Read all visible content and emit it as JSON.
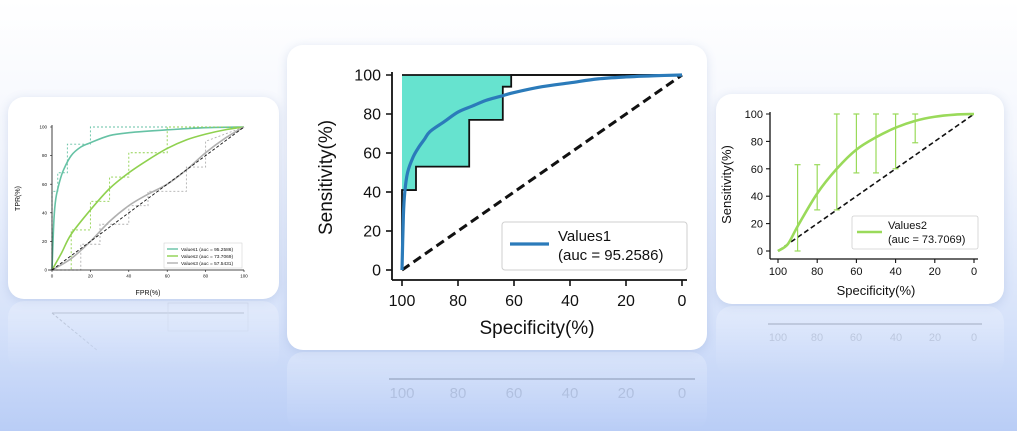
{
  "chart_data": [
    {
      "type": "line",
      "xlabel": "FPR(%)",
      "ylabel": "TPR(%)",
      "xlim": [
        0,
        100
      ],
      "ylim": [
        0,
        100
      ],
      "x_ticks": [
        "0",
        "20",
        "40",
        "60",
        "80",
        "100"
      ],
      "y_ticks": [
        "0",
        "20",
        "40",
        "60",
        "80",
        "100"
      ],
      "legend_placement": "lower-right",
      "diagonal": true,
      "series": [
        {
          "name": "Values1 (auc = 95.2586)",
          "color": "#66c2a5",
          "x": [
            0,
            1,
            2,
            4,
            6,
            10,
            15,
            20,
            30,
            40,
            60,
            80,
            100
          ],
          "y": [
            0,
            35,
            50,
            62,
            70,
            80,
            86,
            89,
            94,
            96,
            98,
            99.5,
            100
          ],
          "step_x": [
            0,
            0,
            3,
            3,
            8,
            8,
            20,
            20,
            30,
            30,
            100
          ],
          "step_y": [
            0,
            55,
            55,
            68,
            68,
            88,
            88,
            100,
            100,
            100,
            100
          ]
        },
        {
          "name": "Values2 (auc = 73.7069)",
          "color": "#8fd14f",
          "x": [
            0,
            5,
            10,
            20,
            30,
            40,
            50,
            60,
            70,
            80,
            90,
            100
          ],
          "y": [
            0,
            12,
            25,
            42,
            57,
            68,
            77,
            85,
            91,
            95,
            98,
            100
          ],
          "step_x": [
            0,
            10,
            10,
            20,
            20,
            30,
            30,
            40,
            40,
            60,
            60,
            100
          ],
          "step_y": [
            0,
            0,
            28,
            28,
            48,
            48,
            65,
            65,
            82,
            82,
            100,
            100
          ]
        },
        {
          "name": "Values3 (auc = 57.5431)",
          "color": "#b0b0b0",
          "x": [
            0,
            10,
            20,
            30,
            40,
            50,
            60,
            70,
            80,
            90,
            100
          ],
          "y": [
            0,
            8,
            20,
            34,
            45,
            53,
            60,
            70,
            82,
            92,
            100
          ],
          "step_x": [
            0,
            15,
            15,
            25,
            25,
            40,
            40,
            50,
            50,
            70,
            70,
            80,
            80,
            100
          ],
          "step_y": [
            0,
            0,
            18,
            18,
            32,
            32,
            45,
            45,
            55,
            55,
            72,
            72,
            90,
            100
          ]
        }
      ]
    },
    {
      "type": "line",
      "xlabel": "Specificity(%)",
      "ylabel": "Sensitivity(%)",
      "xlim": [
        100,
        0
      ],
      "ylim": [
        0,
        100
      ],
      "x_ticks": [
        "100",
        "80",
        "60",
        "40",
        "20",
        "0"
      ],
      "y_ticks": [
        "0",
        "20",
        "40",
        "60",
        "80",
        "100"
      ],
      "legend_placement": "lower-right",
      "diagonal": true,
      "series": [
        {
          "name": "Values1",
          "auc_label": "(auc = 95.2586)",
          "color": "#2b7bba",
          "band_color": "#66e3cf",
          "x": [
            100,
            99.5,
            99,
            98,
            96,
            94,
            92,
            90,
            85,
            80,
            75,
            70,
            65,
            60,
            50,
            40,
            30,
            20,
            10,
            0
          ],
          "y": [
            0,
            28,
            40,
            50,
            58,
            63,
            67,
            71,
            76,
            81,
            84,
            87,
            89,
            91,
            94,
            96,
            98,
            99,
            99.6,
            100
          ],
          "band_upper_x": [
            100,
            60,
            0
          ],
          "band_upper_y": [
            100,
            100,
            100
          ],
          "band_lower_x": [
            100,
            100,
            95,
            95,
            93,
            93,
            76,
            76,
            64,
            64,
            61,
            61,
            0
          ],
          "band_lower_y": [
            0,
            41,
            41,
            53,
            53,
            53,
            53,
            77,
            77,
            94,
            94,
            100,
            100
          ]
        }
      ]
    },
    {
      "type": "line",
      "xlabel": "Specificity(%)",
      "ylabel": "Sensitivity(%)",
      "xlim": [
        100,
        0
      ],
      "ylim": [
        0,
        100
      ],
      "x_ticks": [
        "100",
        "80",
        "60",
        "40",
        "20",
        "0"
      ],
      "y_ticks": [
        "0",
        "20",
        "40",
        "60",
        "80",
        "100"
      ],
      "legend_placement": "lower-right",
      "diagonal": true,
      "series": [
        {
          "name": "Values2",
          "auc_label": "(auc = 73.7069)",
          "color": "#9ada5a",
          "x": [
            100,
            95,
            90,
            80,
            70,
            60,
            50,
            40,
            30,
            20,
            10,
            0
          ],
          "y": [
            0,
            5,
            18,
            42,
            60,
            74,
            83,
            90,
            95,
            98,
            99.5,
            100
          ],
          "err_x": [
            90,
            80,
            70,
            60,
            50,
            40,
            30
          ],
          "err_center": [
            18,
            42,
            62,
            74,
            83,
            90,
            95
          ],
          "err_low": [
            0,
            30,
            30,
            57,
            57,
            60,
            79
          ],
          "err_high": [
            63,
            63,
            100,
            100,
            100,
            100,
            100
          ]
        }
      ]
    }
  ]
}
